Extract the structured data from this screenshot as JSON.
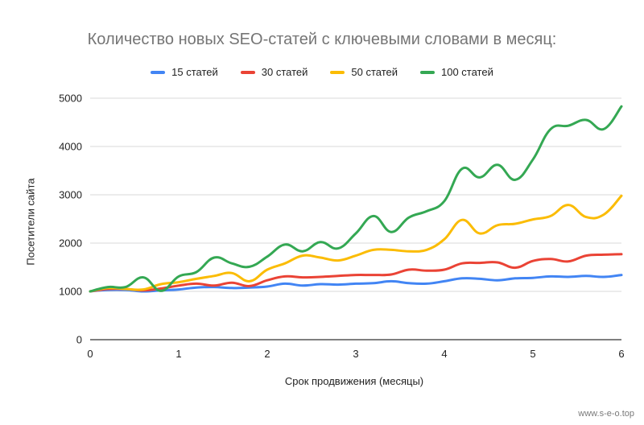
{
  "chart_data": {
    "type": "line",
    "title": "Количество новых SEO-статей с ключевыми словами в месяц:",
    "xlabel": "Срок продвижения (месяцы)",
    "ylabel": "Посетители сайта",
    "xlim": [
      0,
      6
    ],
    "ylim": [
      0,
      5000
    ],
    "x_ticks": [
      "0",
      "1",
      "2",
      "3",
      "4",
      "5",
      "6"
    ],
    "y_ticks": [
      "0",
      "1000",
      "2000",
      "3000",
      "4000",
      "5000"
    ],
    "grid": true,
    "legend_position": "top",
    "x": [
      0,
      0.2,
      0.4,
      0.6,
      0.8,
      1.0,
      1.2,
      1.4,
      1.6,
      1.8,
      2.0,
      2.2,
      2.4,
      2.6,
      2.8,
      3.0,
      3.2,
      3.4,
      3.6,
      3.8,
      4.0,
      4.2,
      4.4,
      4.6,
      4.8,
      5.0,
      5.2,
      5.4,
      5.6,
      5.8,
      6.0
    ],
    "series": [
      {
        "name": "15 статей",
        "color": "#4285F4",
        "values": [
          1000,
          1030,
          1030,
          1000,
          1020,
          1040,
          1080,
          1090,
          1070,
          1080,
          1100,
          1160,
          1120,
          1150,
          1140,
          1160,
          1170,
          1210,
          1170,
          1160,
          1210,
          1270,
          1260,
          1230,
          1270,
          1280,
          1310,
          1300,
          1320,
          1300,
          1340
        ]
      },
      {
        "name": "30 статей",
        "color": "#EA4335",
        "values": [
          1000,
          1050,
          1050,
          1020,
          1060,
          1120,
          1160,
          1120,
          1180,
          1110,
          1230,
          1310,
          1290,
          1300,
          1320,
          1340,
          1340,
          1350,
          1450,
          1430,
          1450,
          1580,
          1590,
          1600,
          1490,
          1630,
          1670,
          1620,
          1740,
          1760,
          1770
        ]
      },
      {
        "name": "50 статей",
        "color": "#FBBC04",
        "values": [
          1000,
          1070,
          1050,
          1040,
          1150,
          1190,
          1260,
          1320,
          1380,
          1210,
          1450,
          1580,
          1740,
          1700,
          1640,
          1740,
          1860,
          1860,
          1830,
          1860,
          2080,
          2480,
          2200,
          2370,
          2400,
          2490,
          2560,
          2790,
          2540,
          2590,
          2980
        ]
      },
      {
        "name": "100 статей",
        "color": "#34A853",
        "values": [
          1000,
          1090,
          1090,
          1290,
          1010,
          1310,
          1400,
          1700,
          1580,
          1510,
          1720,
          1970,
          1830,
          2020,
          1890,
          2200,
          2560,
          2230,
          2530,
          2660,
          2870,
          3540,
          3360,
          3620,
          3310,
          3730,
          4360,
          4430,
          4550,
          4360,
          4830
        ]
      }
    ]
  },
  "watermark": "www.s-e-o.top"
}
